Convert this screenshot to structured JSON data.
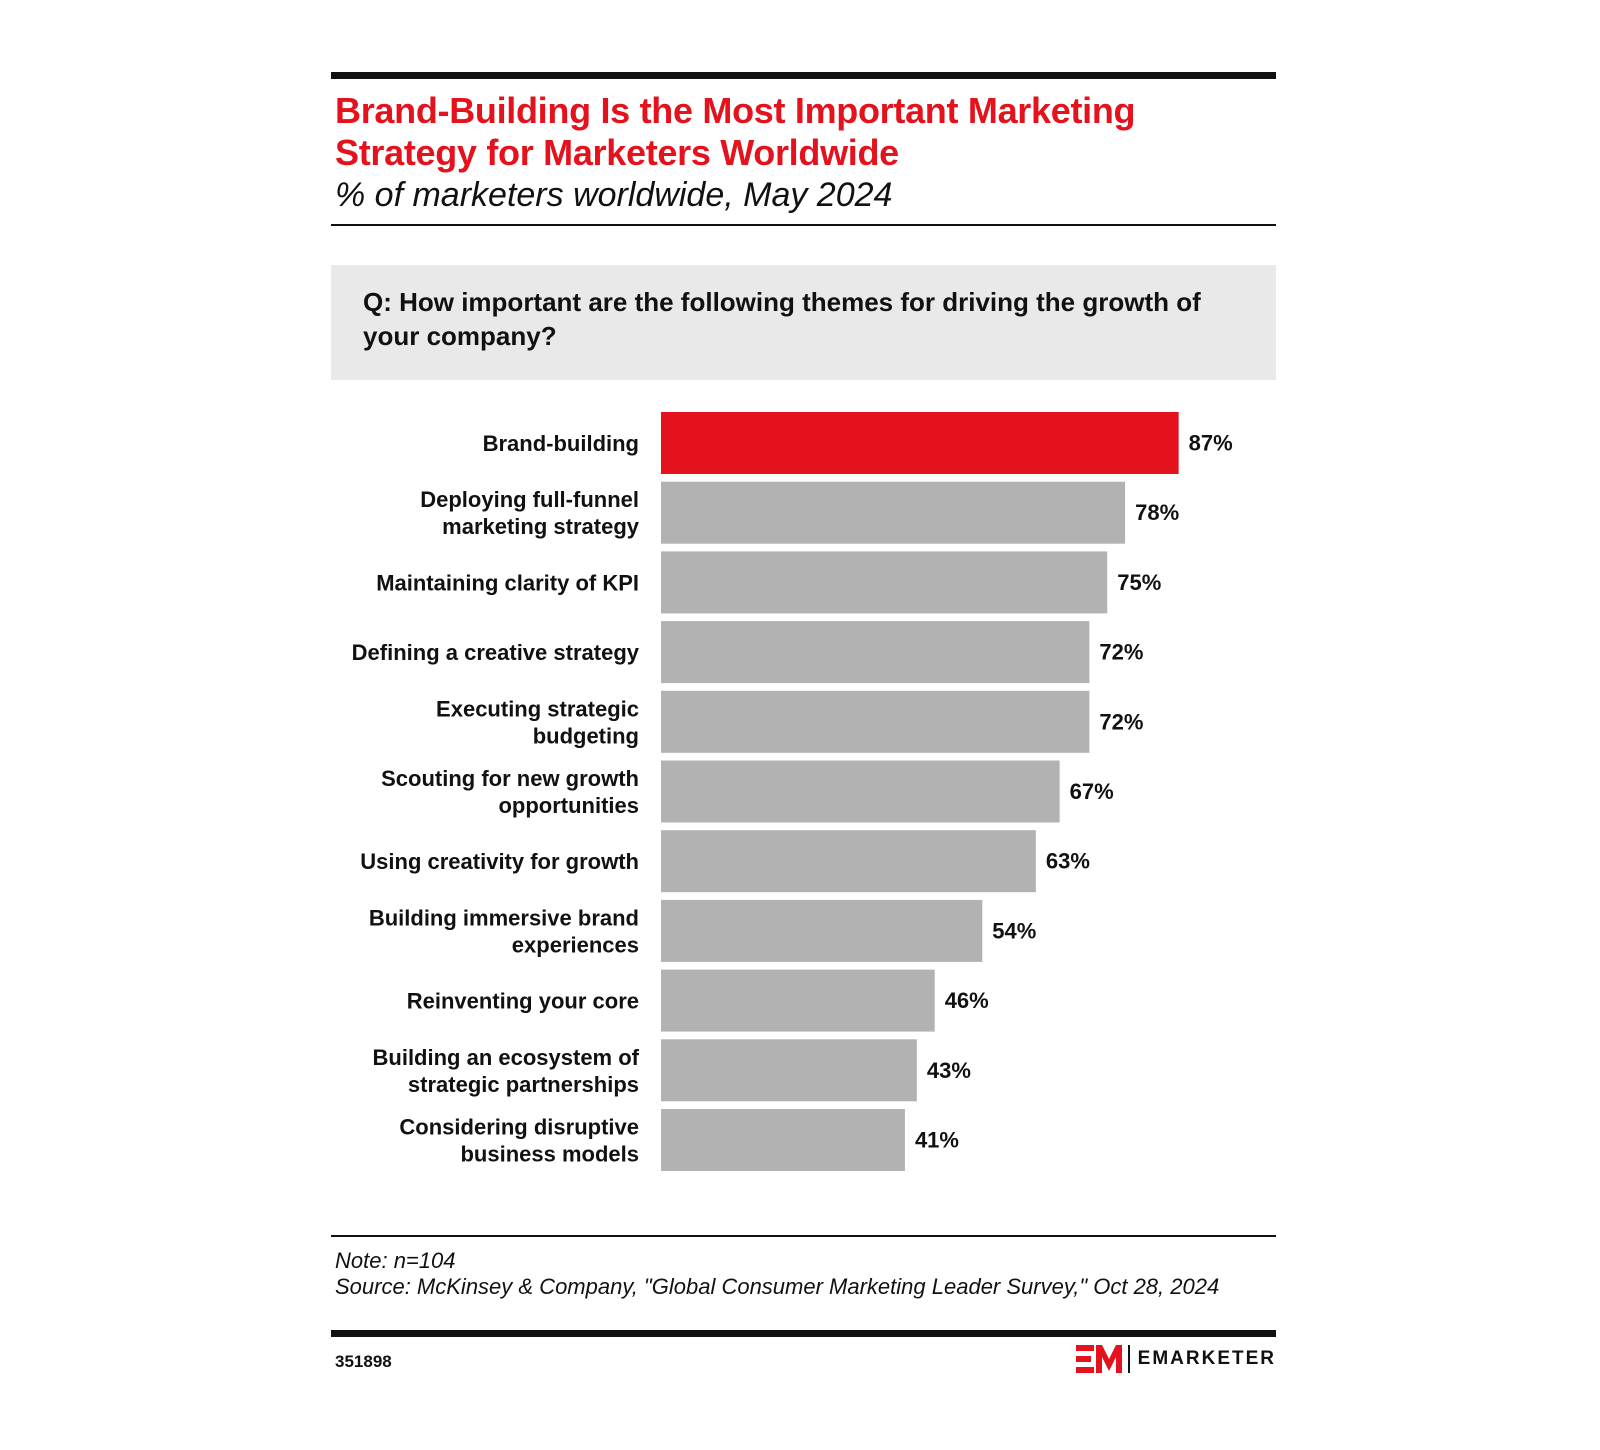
{
  "header": {
    "title": "Brand-Building Is the Most Important Marketing Strategy for Marketers Worldwide",
    "subtitle": "% of marketers worldwide, May 2024"
  },
  "question": "Q: How important are the following themes for driving the growth of your company?",
  "chart_data": {
    "type": "bar",
    "orientation": "horizontal",
    "categories": [
      [
        "Brand-building"
      ],
      [
        "Deploying full-funnel",
        "marketing strategy"
      ],
      [
        "Maintaining clarity of KPI"
      ],
      [
        "Defining a creative strategy"
      ],
      [
        "Executing strategic",
        "budgeting"
      ],
      [
        "Scouting for new growth",
        "opportunities"
      ],
      [
        "Using creativity for growth"
      ],
      [
        "Building immersive brand",
        "experiences"
      ],
      [
        "Reinventing your core"
      ],
      [
        "Building an ecosystem of",
        "strategic partnerships"
      ],
      [
        "Considering disruptive",
        "business models"
      ]
    ],
    "values": [
      87,
      78,
      75,
      72,
      72,
      67,
      63,
      54,
      46,
      43,
      41
    ],
    "value_labels": [
      "87%",
      "78%",
      "75%",
      "72%",
      "72%",
      "67%",
      "63%",
      "54%",
      "46%",
      "43%",
      "41%"
    ],
    "highlight_color": "#e4121d",
    "bar_color": "#b2b2b2",
    "xlim": [
      0,
      100
    ],
    "grid": false,
    "legend": "none"
  },
  "footer": {
    "note": "Note: n=104",
    "source": "Source: McKinsey & Company, \"Global Consumer Marketing Leader Survey,\" Oct 28, 2024",
    "chart_id": "351898",
    "brand": "EMARKETER",
    "brand_color": "#e4121d"
  }
}
